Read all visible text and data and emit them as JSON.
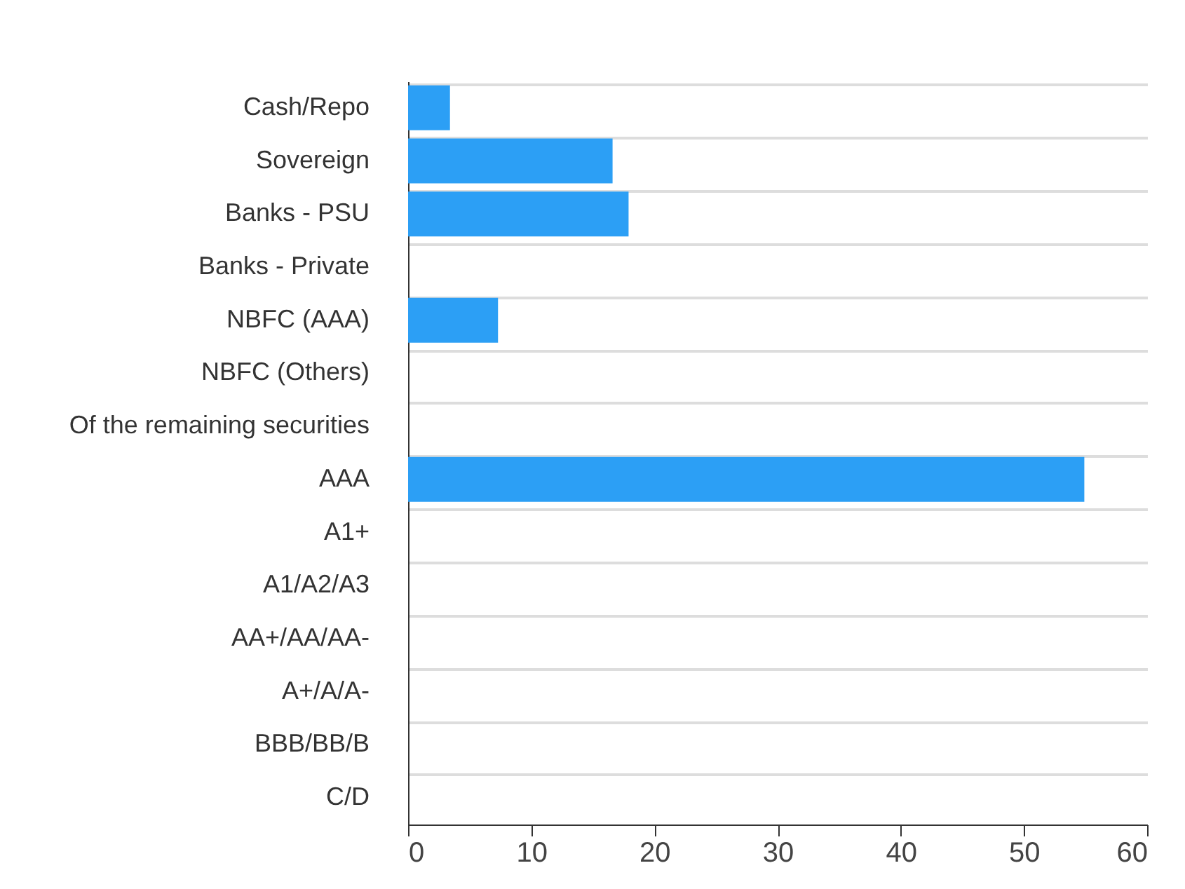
{
  "chart_data": {
    "type": "bar",
    "orientation": "horizontal",
    "categories": [
      "Cash/Repo",
      "Sovereign",
      "Banks - PSU",
      "Banks - Private",
      "NBFC (AAA)",
      "NBFC (Others)",
      "Of the remaining securities",
      "AAA",
      "A1+",
      "A1/A2/A3",
      "AA+/AA/AA-",
      "A+/A/A-",
      "BBB/BB/B",
      "C/D"
    ],
    "values": [
      3.4,
      16.6,
      17.9,
      0,
      7.3,
      0,
      0,
      54.9,
      0,
      0,
      0,
      0,
      0,
      0
    ],
    "color": "#2c9ff5",
    "xlim": [
      0,
      60
    ],
    "xticks": [
      0,
      10,
      20,
      30,
      40,
      50,
      60
    ],
    "grid": "y"
  }
}
